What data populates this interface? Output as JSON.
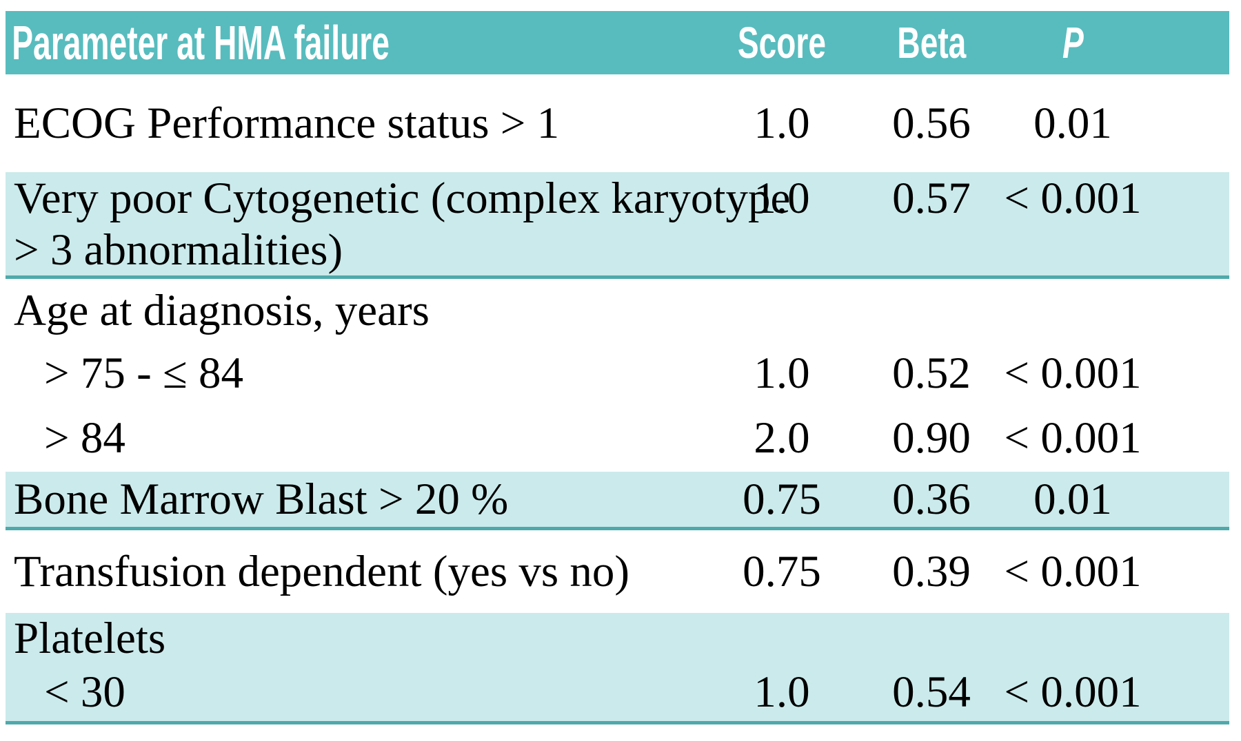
{
  "table": {
    "header": {
      "param": "Parameter at HMA failure",
      "score": "Score",
      "beta": "Beta",
      "p": "P"
    },
    "sections": [
      {
        "shaded": false,
        "lines": [
          {
            "text": "ECOG Performance status > 1",
            "score": "1.0",
            "beta": "0.56",
            "p": "0.01"
          }
        ]
      },
      {
        "shaded": true,
        "lines": [
          {
            "text": "Very poor Cytogenetic (complex karyotype",
            "score": "1.0",
            "beta": "0.57",
            "p": "< 0.001"
          },
          {
            "text": "> 3 abnormalities)"
          }
        ]
      },
      {
        "shaded": false,
        "lines": [
          {
            "text": "Age at diagnosis, years"
          },
          {
            "text": "> 75 - ≤ 84",
            "indent": true,
            "score": "1.0",
            "beta": "0.52",
            "p": "< 0.001"
          },
          {
            "text": "> 84",
            "indent": true,
            "score": "2.0",
            "beta": "0.90",
            "p": "< 0.001"
          }
        ]
      },
      {
        "shaded": true,
        "lines": [
          {
            "text": "Bone Marrow Blast > 20 %",
            "score": "0.75",
            "beta": "0.36",
            "p": "0.01"
          }
        ]
      },
      {
        "shaded": false,
        "lines": [
          {
            "text": "Transfusion dependent (yes vs no)",
            "score": "0.75",
            "beta": "0.39",
            "p": "< 0.001"
          }
        ]
      },
      {
        "shaded": true,
        "lines": [
          {
            "text": "Platelets"
          },
          {
            "text": "< 30",
            "indent": true,
            "score": "1.0",
            "beta": "0.54",
            "p": "< 0.001"
          }
        ]
      }
    ]
  },
  "colors": {
    "header_bg": "#58BCBE",
    "shaded_row_bg": "#CBEAEB",
    "section_divider": "#4FA9AB",
    "header_text": "#FFFFFF",
    "body_text": "#000000"
  }
}
